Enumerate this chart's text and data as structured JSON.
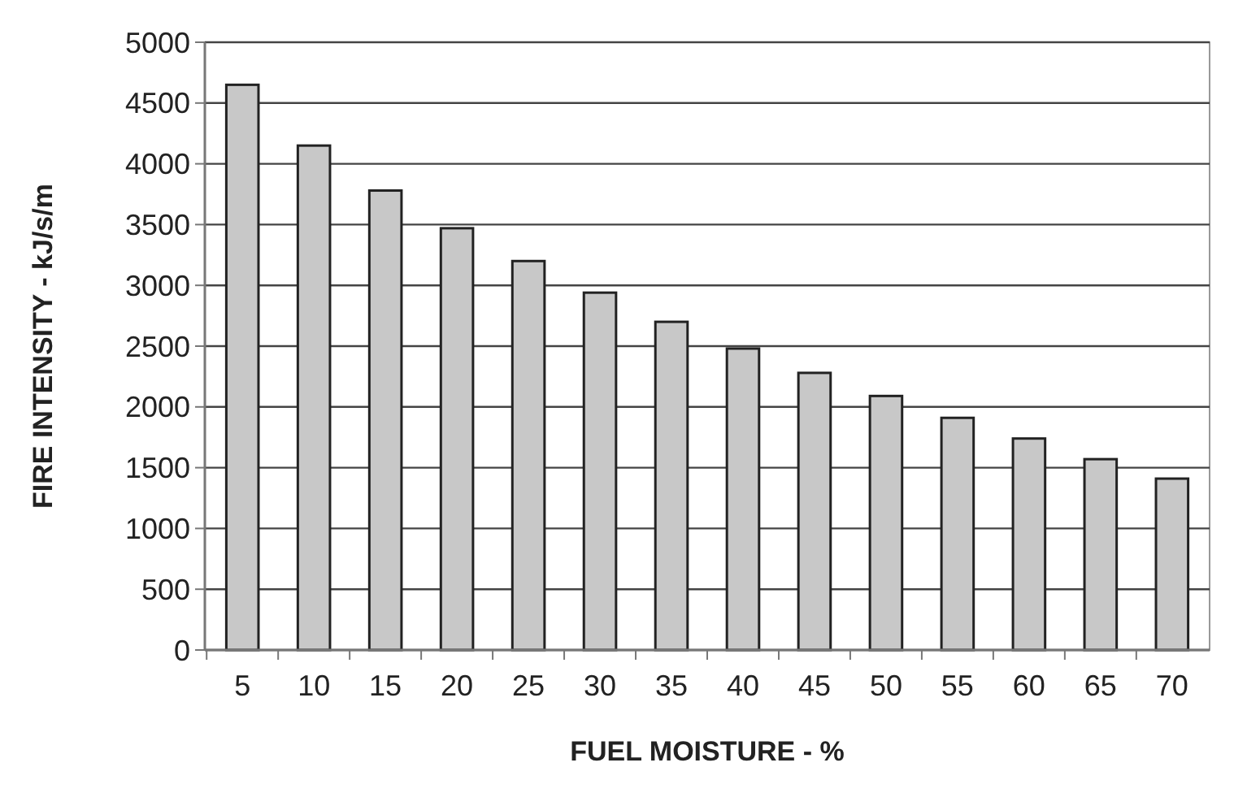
{
  "chart_data": {
    "type": "bar",
    "xlabel": "FUEL MOISTURE - %",
    "ylabel": "FIRE INTENSITY - kJ/s/m",
    "categories": [
      "5",
      "10",
      "15",
      "20",
      "25",
      "30",
      "35",
      "40",
      "45",
      "50",
      "55",
      "60",
      "65",
      "70"
    ],
    "values": [
      4650,
      4150,
      3780,
      3470,
      3200,
      2940,
      2700,
      2480,
      2280,
      2090,
      1910,
      1740,
      1570,
      1410
    ],
    "color": "#c8c8c8",
    "ylim": [
      0,
      5000
    ],
    "yticks": [
      0,
      500,
      1000,
      1500,
      2000,
      2500,
      3000,
      3500,
      4000,
      4500,
      5000
    ],
    "grid": "y"
  }
}
